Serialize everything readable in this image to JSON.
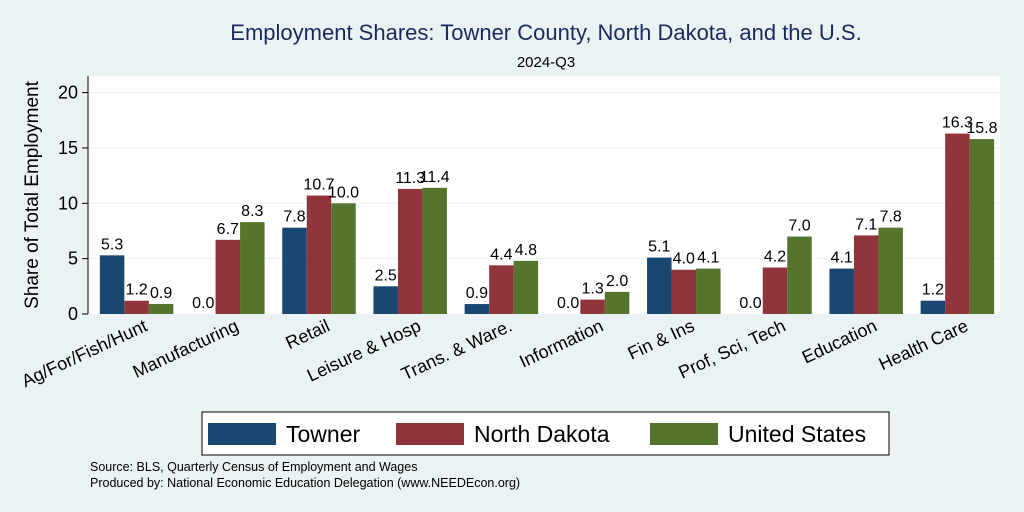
{
  "chart_data": {
    "type": "bar",
    "title": "Employment Shares: Towner County, North Dakota, and the U.S.",
    "subtitle": "2024-Q3",
    "ylabel": "Share of Total Employment",
    "xlabel": "",
    "ylim": [
      0,
      21.5
    ],
    "yticks": [
      0,
      5,
      10,
      15,
      20
    ],
    "categories": [
      "Ag/For/Fish/Hunt",
      "Manufacturing",
      "Retail",
      "Leisure & Hosp",
      "Trans. & Ware.",
      "Information",
      "Fin & Ins",
      "Prof, Sci, Tech",
      "Education",
      "Health Care"
    ],
    "series": [
      {
        "name": "Towner",
        "color": "#1a476f",
        "values": [
          5.3,
          0.0,
          7.8,
          2.5,
          0.9,
          0.0,
          5.1,
          0.0,
          4.1,
          1.2
        ]
      },
      {
        "name": "North Dakota",
        "color": "#90353b",
        "values": [
          1.2,
          6.7,
          10.7,
          11.3,
          4.4,
          1.3,
          4.0,
          4.2,
          7.1,
          16.3
        ]
      },
      {
        "name": "United States",
        "color": "#55752f",
        "values": [
          0.9,
          8.3,
          10.0,
          11.4,
          4.8,
          2.0,
          4.1,
          7.0,
          7.8,
          15.8
        ]
      }
    ],
    "grid": true,
    "legend_position": "bottom"
  },
  "footer": {
    "source": "Source: BLS, Quarterly Census of Employment and Wages",
    "produced": "Produced by: National Economic Education Delegation (www.NEEDEcon.org)"
  }
}
